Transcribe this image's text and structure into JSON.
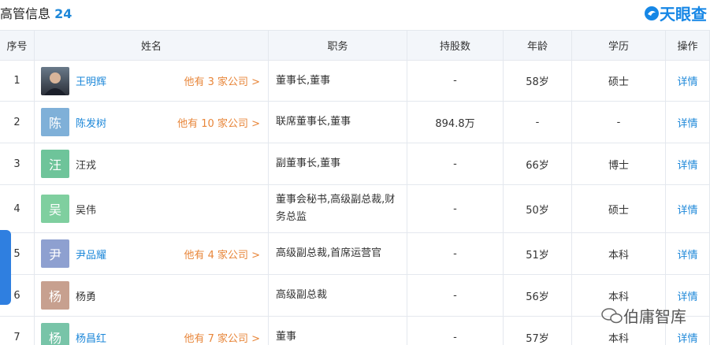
{
  "header": {
    "title": "高管信息",
    "count": "24",
    "logo": "天眼查"
  },
  "table": {
    "columns": [
      "序号",
      "姓名",
      "职务",
      "持股数",
      "年龄",
      "学历",
      "操作"
    ],
    "rows": [
      {
        "index": "1",
        "name": "王明辉",
        "companies": "他有 3 家公司 >",
        "position": "董事长,董事",
        "shares": "-",
        "age": "58岁",
        "education": "硕士",
        "action": "详情"
      },
      {
        "index": "2",
        "avatar": "陈",
        "name": "陈发树",
        "companies": "他有 10 家公司 >",
        "position": "联席董事长,董事",
        "shares": "894.8万",
        "age": "-",
        "education": "-",
        "action": "详情"
      },
      {
        "index": "3",
        "avatar": "汪",
        "name": "汪戎",
        "position": "副董事长,董事",
        "shares": "-",
        "age": "66岁",
        "education": "博士",
        "action": "详情"
      },
      {
        "index": "4",
        "avatar": "吴",
        "name": "吴伟",
        "position": "董事会秘书,高级副总裁,财务总监",
        "shares": "-",
        "age": "50岁",
        "education": "硕士",
        "action": "详情"
      },
      {
        "index": "5",
        "avatar": "尹",
        "name": "尹品耀",
        "companies": "他有 4 家公司 >",
        "position": "高级副总裁,首席运营官",
        "shares": "-",
        "age": "51岁",
        "education": "本科",
        "action": "详情"
      },
      {
        "index": "6",
        "avatar": "杨",
        "name": "杨勇",
        "position": "高级副总裁",
        "shares": "-",
        "age": "56岁",
        "education": "本科",
        "action": "详情"
      },
      {
        "index": "7",
        "avatar": "杨",
        "name": "杨昌红",
        "companies": "他有 7 家公司 >",
        "position": "董事",
        "shares": "-",
        "age": "57岁",
        "education": "本科",
        "action": "详情"
      }
    ]
  },
  "watermark": "伯庸智库"
}
